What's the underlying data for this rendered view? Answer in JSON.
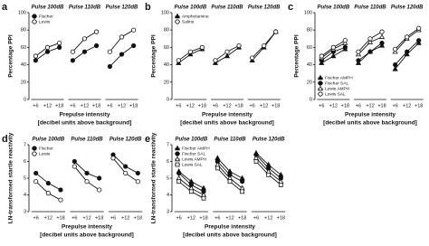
{
  "chart_data": [
    {
      "type": "line",
      "panel": "a",
      "ylabel": "Percentage PPI",
      "xlabel": "Prepulse intensity",
      "xlabel2": "[decibel units above background]",
      "groups": [
        "Pulse 100dB",
        "Pulse 110dB",
        "Pulse 120dB"
      ],
      "categories": [
        "+6",
        "+12",
        "+18"
      ],
      "ylim": [
        0,
        100
      ],
      "yticks": [
        0,
        20,
        40,
        60,
        80,
        100
      ],
      "legend": "top-left",
      "series": [
        {
          "name": "Fischer",
          "color": "#111111",
          "marker": "circle",
          "filled": true,
          "values": [
            [
              45,
              55,
              60
            ],
            [
              45,
              55,
              62
            ],
            [
              38,
              52,
              62
            ]
          ]
        },
        {
          "name": "Lewis",
          "color": "#111111",
          "marker": "circle",
          "filled": false,
          "values": [
            [
              50,
              60,
              65
            ],
            [
              55,
              70,
              78
            ],
            [
              55,
              72,
              80
            ]
          ]
        }
      ]
    },
    {
      "type": "line",
      "panel": "b",
      "ylabel": "Percentage PPI",
      "xlabel": "Prepulse intensity",
      "xlabel2": "[decibel units above background]",
      "groups": [
        "Pulse 100dB",
        "Pulse 110dB",
        "Pulse 120dB"
      ],
      "categories": [
        "+6",
        "+12",
        "+18"
      ],
      "ylim": [
        0,
        100
      ],
      "yticks": [
        0,
        20,
        40,
        60,
        80,
        100
      ],
      "legend": "top-left",
      "series": [
        {
          "name": "Amphetamine",
          "color": "#111111",
          "marker": "triangle",
          "filled": true,
          "values": [
            [
              42,
              52,
              58
            ],
            [
              42,
              50,
              60
            ],
            [
              45,
              60,
              78
            ]
          ]
        },
        {
          "name": "Saline",
          "color": "#111111",
          "marker": "circle",
          "filled": false,
          "values": [
            [
              45,
              55,
              60
            ],
            [
              45,
              55,
              62
            ],
            [
              48,
              62,
              78
            ]
          ]
        }
      ]
    },
    {
      "type": "line",
      "panel": "c",
      "ylabel": "Percentage PPI",
      "xlabel": "Prepulse intensity",
      "xlabel2": "[decibel units above background]",
      "groups": [
        "Pulse 100dB",
        "Pulse 110dB",
        "Pulse 120dB"
      ],
      "categories": [
        "+6",
        "+12",
        "+18"
      ],
      "ylim": [
        0,
        100
      ],
      "yticks": [
        0,
        20,
        40,
        60,
        80,
        100
      ],
      "legend": "bottom-left",
      "series": [
        {
          "name": "Fischer AMPH",
          "color": "#111111",
          "marker": "triangle",
          "filled": true,
          "values": [
            [
              42,
              50,
              58
            ],
            [
              42,
              55,
              62
            ],
            [
              35,
              52,
              65
            ]
          ]
        },
        {
          "name": "Fischer SAL",
          "color": "#111111",
          "marker": "circle",
          "filled": true,
          "values": [
            [
              45,
              55,
              60
            ],
            [
              45,
              55,
              65
            ],
            [
              40,
              55,
              68
            ]
          ]
        },
        {
          "name": "Lewis AMPH",
          "color": "#111111",
          "marker": "triangle",
          "filled": false,
          "values": [
            [
              48,
              58,
              65
            ],
            [
              52,
              66,
              72
            ],
            [
              55,
              70,
              80
            ]
          ]
        },
        {
          "name": "Lewis SAL",
          "color": "#111111",
          "marker": "circle",
          "filled": false,
          "values": [
            [
              50,
              60,
              68
            ],
            [
              55,
              70,
              78
            ],
            [
              58,
              72,
              82
            ]
          ]
        }
      ]
    },
    {
      "type": "line",
      "panel": "d",
      "ylabel": "LN-transformed startle reactivity",
      "xlabel": "Prepulse intensity",
      "xlabel2": "[decibel units above background]",
      "groups": [
        "Pulse 100dB",
        "Pulse 110dB",
        "Pulse 120dB"
      ],
      "categories": [
        "+6",
        "+12",
        "+18"
      ],
      "ylim": [
        3,
        7
      ],
      "yticks": [
        3,
        4,
        5,
        6,
        7
      ],
      "legend": "top-left",
      "series": [
        {
          "name": "Fischer",
          "color": "#111111",
          "marker": "circle",
          "filled": true,
          "values": [
            [
              5.3,
              4.7,
              4.3
            ],
            [
              6.0,
              5.3,
              5.0
            ],
            [
              6.4,
              5.7,
              5.3
            ]
          ]
        },
        {
          "name": "Lewis",
          "color": "#111111",
          "marker": "circle",
          "filled": false,
          "values": [
            [
              4.8,
              4.1,
              3.7
            ],
            [
              5.7,
              4.8,
              4.3
            ],
            [
              6.2,
              5.3,
              4.8
            ]
          ]
        }
      ]
    },
    {
      "type": "line",
      "panel": "e",
      "ylabel": "LN-transformed startle reactivity",
      "xlabel": "Prepulse intensity",
      "xlabel2": "[decibel units above background]",
      "groups": [
        "Pulse 100dB",
        "Pulse 110dB",
        "Pulse 120dB"
      ],
      "categories": [
        "+6",
        "+12",
        "+18"
      ],
      "ylim": [
        3,
        7
      ],
      "yticks": [
        3,
        4,
        5,
        6,
        7
      ],
      "legend": "top-left",
      "series": [
        {
          "name": "Fischer AMPH",
          "color": "#111111",
          "marker": "triangle",
          "filled": true,
          "values": [
            [
              5.4,
              4.8,
              4.4
            ],
            [
              6.2,
              5.4,
              5.0
            ],
            [
              6.5,
              5.8,
              5.2
            ]
          ]
        },
        {
          "name": "Fischer SAL",
          "color": "#111111",
          "marker": "circle",
          "filled": true,
          "values": [
            [
              5.3,
              4.6,
              4.2
            ],
            [
              6.0,
              5.2,
              4.8
            ],
            [
              6.4,
              5.6,
              5.0
            ]
          ]
        },
        {
          "name": "Lewis AMPH",
          "color": "#111111",
          "marker": "triangle",
          "filled": false,
          "values": [
            [
              5.0,
              4.4,
              4.0
            ],
            [
              5.8,
              5.0,
              4.4
            ],
            [
              6.2,
              5.4,
              4.8
            ]
          ]
        },
        {
          "name": "Lewis SAL",
          "color": "#111111",
          "marker": "square",
          "filled": false,
          "values": [
            [
              4.8,
              4.2,
              3.8
            ],
            [
              5.6,
              4.8,
              4.2
            ],
            [
              6.0,
              5.2,
              4.6
            ]
          ]
        }
      ]
    }
  ]
}
